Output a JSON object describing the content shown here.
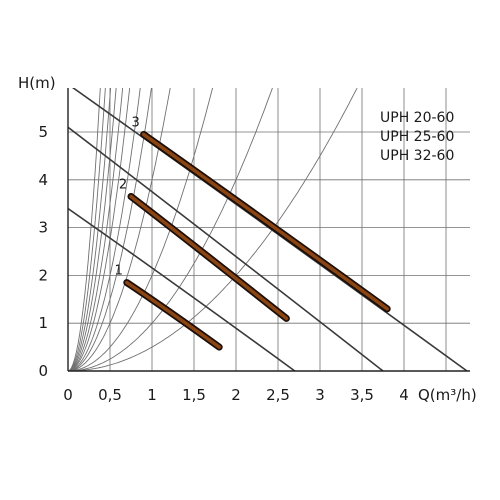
{
  "chart_data": {
    "type": "line",
    "xlabel": "Q(m³/h)",
    "ylabel": "H(m)",
    "xlim": [
      0,
      4.8
    ],
    "ylim": [
      0,
      6.0
    ],
    "x_ticks": [
      "0",
      "0,5",
      "1",
      "1,5",
      "2",
      "2,5",
      "3",
      "3,5",
      "4"
    ],
    "y_ticks": [
      "0",
      "1",
      "2",
      "3",
      "4",
      "5"
    ],
    "grid": true,
    "models": [
      "UPH 20-60",
      "UPH 25-60",
      "UPH 32-60"
    ],
    "system_curves": [
      0.5,
      1,
      2,
      4,
      6,
      8,
      11,
      14,
      18,
      23,
      30,
      40
    ],
    "pump_curves": [
      {
        "name": "1",
        "x": [
          0,
          2.7
        ],
        "y": [
          3.4,
          0
        ]
      },
      {
        "name": "2",
        "x": [
          0,
          3.75
        ],
        "y": [
          5.1,
          0
        ]
      },
      {
        "name": "3",
        "x": [
          0,
          4.75
        ],
        "y": [
          6.0,
          0
        ]
      }
    ],
    "operating_ranges": [
      {
        "name": "1",
        "x": [
          0.7,
          1.8
        ],
        "y": [
          1.85,
          0.5
        ]
      },
      {
        "name": "2",
        "x": [
          0.75,
          2.6
        ],
        "y": [
          3.65,
          1.1
        ]
      },
      {
        "name": "3",
        "x": [
          0.9,
          3.8
        ],
        "y": [
          4.95,
          1.3
        ]
      }
    ]
  },
  "colors": {
    "grid": "#707070",
    "curve": "#3a3a3a",
    "band_outer": "#1c0e08",
    "band_inner": "#8b4513"
  }
}
